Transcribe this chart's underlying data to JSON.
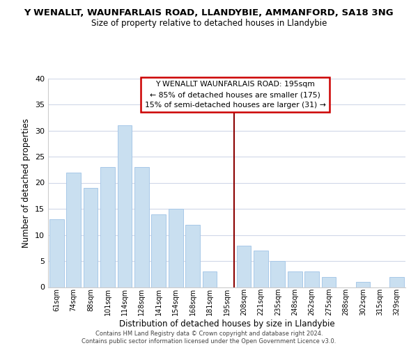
{
  "title": "Y WENALLT, WAUNFARLAIS ROAD, LLANDYBIE, AMMANFORD, SA18 3NG",
  "subtitle": "Size of property relative to detached houses in Llandybie",
  "xlabel": "Distribution of detached houses by size in Llandybie",
  "ylabel": "Number of detached properties",
  "bar_labels": [
    "61sqm",
    "74sqm",
    "88sqm",
    "101sqm",
    "114sqm",
    "128sqm",
    "141sqm",
    "154sqm",
    "168sqm",
    "181sqm",
    "195sqm",
    "208sqm",
    "221sqm",
    "235sqm",
    "248sqm",
    "262sqm",
    "275sqm",
    "288sqm",
    "302sqm",
    "315sqm",
    "329sqm"
  ],
  "bar_values": [
    13,
    22,
    19,
    23,
    31,
    23,
    14,
    15,
    12,
    3,
    0,
    8,
    7,
    5,
    3,
    3,
    2,
    0,
    1,
    0,
    2
  ],
  "bar_color": "#c9dff0",
  "bar_edge_color": "#a8c8e8",
  "highlight_line_color": "#8b0000",
  "ylim": [
    0,
    40
  ],
  "yticks": [
    0,
    5,
    10,
    15,
    20,
    25,
    30,
    35,
    40
  ],
  "annotation_title": "Y WENALLT WAUNFARLAIS ROAD: 195sqm",
  "annotation_line1": "← 85% of detached houses are smaller (175)",
  "annotation_line2": "15% of semi-detached houses are larger (31) →",
  "annotation_box_edge": "#cc0000",
  "footer_line1": "Contains HM Land Registry data © Crown copyright and database right 2024.",
  "footer_line2": "Contains public sector information licensed under the Open Government Licence v3.0.",
  "background_color": "#ffffff",
  "grid_color": "#d0d8e8"
}
